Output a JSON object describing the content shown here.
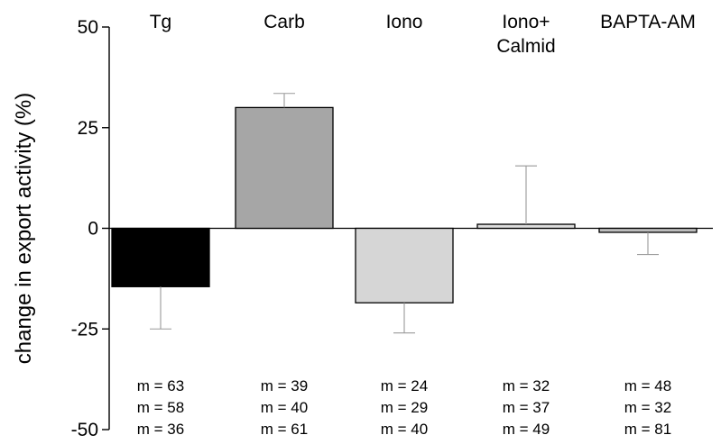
{
  "chart_data": {
    "type": "bar",
    "ylabel": "change in export activity (%)",
    "ylim": [
      -50,
      50
    ],
    "yticks": [
      50,
      25,
      0,
      -25,
      -50
    ],
    "categories": [
      [
        "Tg"
      ],
      [
        "Carb"
      ],
      [
        "Iono"
      ],
      [
        "Iono+",
        "Calmid"
      ],
      [
        "BAPTA-AM"
      ]
    ],
    "values": [
      -14.5,
      30,
      -18.5,
      1,
      -1
    ],
    "error_bars": [
      -25,
      33.5,
      -26,
      15.5,
      -6.5
    ],
    "bar_colors": [
      "#000000",
      "#a6a6a6",
      "#d6d6d6",
      "#dddddd",
      "#bdbdbd"
    ],
    "n_labels": [
      [
        "m = 63",
        "m = 58",
        "m = 36"
      ],
      [
        "m = 39",
        "m = 40",
        "m = 61"
      ],
      [
        "m = 24",
        "m = 29",
        "m = 40"
      ],
      [
        "m = 32",
        "m = 37",
        "m = 49"
      ],
      [
        "m = 48",
        "m = 32",
        "m = 81"
      ]
    ],
    "grid": false,
    "legend": "none"
  }
}
